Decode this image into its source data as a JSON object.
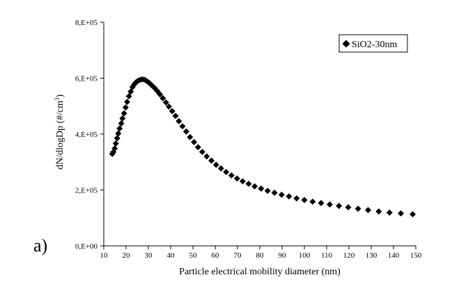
{
  "panel_label": "a)",
  "chart_data": {
    "type": "scatter",
    "xlabel": "Particle electrical mobility diameter (nm)",
    "ylabel_main": "dN/dlogDp (#/cm",
    "ylabel_sup": "3",
    "ylabel_close": ")",
    "xlim": [
      10,
      150
    ],
    "ylim": [
      0,
      800000
    ],
    "xticks": [
      10,
      20,
      30,
      40,
      50,
      60,
      70,
      80,
      90,
      100,
      110,
      120,
      130,
      140,
      150
    ],
    "xtick_labels": [
      "10",
      "20",
      "30",
      "40",
      "50",
      "60",
      "70",
      "80",
      "90",
      "100",
      "110",
      "120",
      "130",
      "140",
      "150"
    ],
    "yticks": [
      0,
      200000,
      400000,
      600000,
      800000
    ],
    "ytick_labels": [
      "0,E+00",
      "2,E+05",
      "4,E+05",
      "6,E+05",
      "8,E+05"
    ],
    "grid": false,
    "legend_position": "top-right",
    "marker": "diamond",
    "series": [
      {
        "name": "SiO2-30nm",
        "color": "#000000",
        "x": [
          13.8,
          14.3,
          14.9,
          15.4,
          16.0,
          16.5,
          17.1,
          17.8,
          18.4,
          19.1,
          19.8,
          20.5,
          21.3,
          22.1,
          22.9,
          23.7,
          24.6,
          25.5,
          26.4,
          27.4,
          28.4,
          29.4,
          30.5,
          31.6,
          32.8,
          34.0,
          35.2,
          36.5,
          37.9,
          39.2,
          40.7,
          42.2,
          43.7,
          45.3,
          47.0,
          48.7,
          50.5,
          52.3,
          54.2,
          56.2,
          58.3,
          60.4,
          62.6,
          64.9,
          67.3,
          69.8,
          72.3,
          75.0,
          77.7,
          80.6,
          83.5,
          86.6,
          89.8,
          93.1,
          96.5,
          100.0,
          103.7,
          107.5,
          111.4,
          115.5,
          119.7,
          124.1,
          128.6,
          133.4,
          138.2,
          143.3,
          148.6
        ],
        "y": [
          329000,
          336000,
          348000,
          366000,
          385000,
          402000,
          420000,
          438000,
          456000,
          474000,
          495000,
          515000,
          535000,
          552000,
          568000,
          578000,
          586000,
          591000,
          594000,
          596000,
          594000,
          589000,
          582000,
          574000,
          565000,
          554000,
          542000,
          528000,
          513000,
          498000,
          482000,
          465000,
          446000,
          428000,
          409000,
          389000,
          371000,
          353000,
          336000,
          320000,
          305000,
          290000,
          277000,
          264000,
          252000,
          241000,
          231000,
          222000,
          213000,
          205000,
          197000,
          190000,
          183000,
          177000,
          170000,
          164000,
          158000,
          153000,
          148000,
          143000,
          138000,
          133000,
          128000,
          123000,
          119000,
          116000,
          113000
        ]
      }
    ]
  }
}
